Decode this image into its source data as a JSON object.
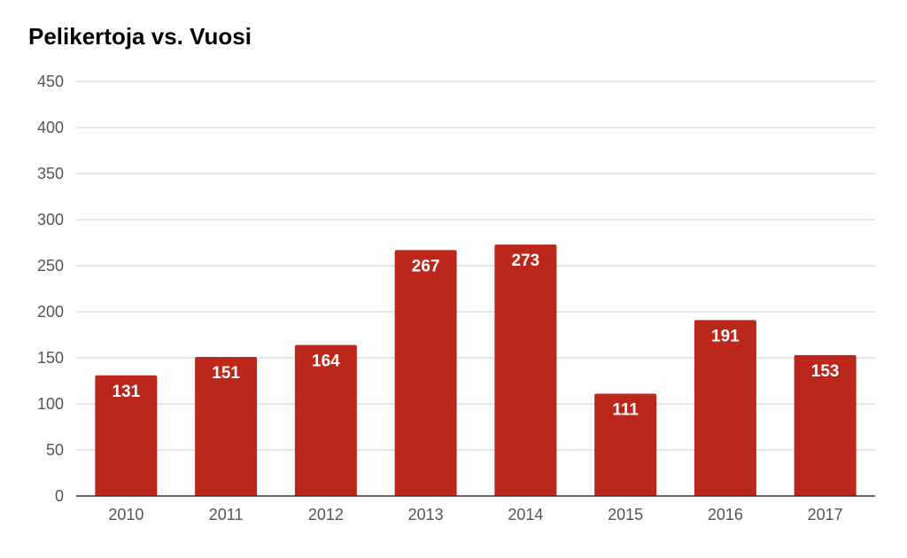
{
  "chart_data": {
    "type": "bar",
    "title": "Pelikertoja vs. Vuosi",
    "xlabel": "",
    "ylabel": "",
    "categories": [
      "2010",
      "2011",
      "2012",
      "2013",
      "2014",
      "2015",
      "2016",
      "2017"
    ],
    "values": [
      131,
      151,
      164,
      267,
      273,
      111,
      191,
      153
    ],
    "ylim": [
      0,
      450
    ],
    "yticks": [
      0,
      50,
      100,
      150,
      200,
      250,
      300,
      350,
      400,
      450
    ],
    "grid": true,
    "legend": "none",
    "data_labels": true,
    "colors": {
      "bar": "#bb271a",
      "grid": "#cccccc",
      "axis": "#333333",
      "label": "#ffffff",
      "tick": "#555555"
    }
  }
}
